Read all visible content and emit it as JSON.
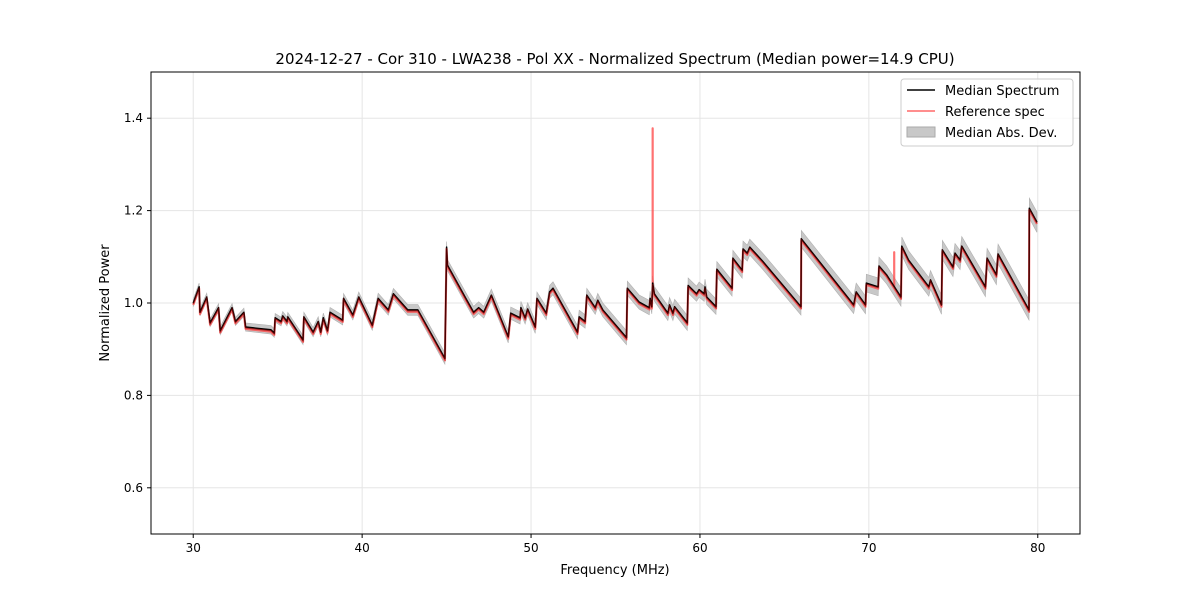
{
  "chart_data": {
    "type": "line",
    "title": "2024-12-27 - Cor 310 - LWA238 - Pol XX - Normalized Spectrum (Median power=14.9 CPU)",
    "xlabel": "Frequency (MHz)",
    "ylabel": "Normalized Power",
    "xlim": [
      27.5,
      82.5
    ],
    "ylim": [
      0.5,
      1.5
    ],
    "xticks": [
      30,
      40,
      50,
      60,
      70,
      80
    ],
    "xtick_labels": [
      "30",
      "40",
      "50",
      "60",
      "70",
      "80"
    ],
    "yticks": [
      0.6,
      0.8,
      1.0,
      1.2,
      1.4
    ],
    "ytick_labels": [
      "0.6",
      "0.8",
      "1.0",
      "1.2",
      "1.4"
    ],
    "grid": true,
    "legend_position": "top-right",
    "legend": [
      "Median Spectrum",
      "Reference spec",
      "Median Abs. Dev."
    ],
    "colors": {
      "median": "#000000",
      "reference": "#ff4d4d",
      "mad": "#c8c8c8"
    },
    "series": [
      {
        "name": "Median Spectrum",
        "points": [
          [
            30.0,
            1.0
          ],
          [
            30.35,
            1.035
          ],
          [
            30.4,
            0.98
          ],
          [
            30.8,
            1.013
          ],
          [
            31.0,
            0.957
          ],
          [
            31.5,
            0.99
          ],
          [
            31.6,
            0.94
          ],
          [
            32.3,
            0.99
          ],
          [
            32.5,
            0.96
          ],
          [
            33.0,
            0.98
          ],
          [
            33.1,
            0.948
          ],
          [
            34.6,
            0.942
          ],
          [
            34.8,
            0.935
          ],
          [
            34.85,
            0.968
          ],
          [
            35.2,
            0.96
          ],
          [
            35.3,
            0.972
          ],
          [
            35.55,
            0.96
          ],
          [
            35.6,
            0.97
          ],
          [
            36.5,
            0.92
          ],
          [
            36.55,
            0.97
          ],
          [
            37.1,
            0.937
          ],
          [
            37.4,
            0.96
          ],
          [
            37.55,
            0.937
          ],
          [
            37.7,
            0.968
          ],
          [
            37.95,
            0.94
          ],
          [
            38.1,
            0.98
          ],
          [
            38.85,
            0.963
          ],
          [
            38.9,
            1.01
          ],
          [
            39.45,
            0.974
          ],
          [
            39.8,
            1.013
          ],
          [
            40.6,
            0.952
          ],
          [
            40.95,
            1.01
          ],
          [
            41.55,
            0.985
          ],
          [
            41.85,
            1.02
          ],
          [
            42.7,
            0.985
          ],
          [
            43.3,
            0.985
          ],
          [
            44.9,
            0.88
          ],
          [
            45.0,
            1.121
          ],
          [
            45.05,
            1.082
          ],
          [
            46.2,
            1.006
          ],
          [
            46.6,
            0.98
          ],
          [
            46.9,
            0.99
          ],
          [
            47.2,
            0.98
          ],
          [
            47.65,
            1.017
          ],
          [
            48.65,
            0.927
          ],
          [
            48.8,
            0.978
          ],
          [
            49.35,
            0.968
          ],
          [
            49.4,
            0.99
          ],
          [
            49.65,
            0.968
          ],
          [
            49.8,
            0.987
          ],
          [
            50.25,
            0.948
          ],
          [
            50.35,
            1.01
          ],
          [
            50.9,
            0.978
          ],
          [
            51.1,
            1.024
          ],
          [
            51.3,
            1.032
          ],
          [
            52.75,
            0.937
          ],
          [
            52.85,
            0.97
          ],
          [
            53.2,
            0.96
          ],
          [
            53.3,
            1.017
          ],
          [
            53.8,
            0.99
          ],
          [
            53.95,
            1.006
          ],
          [
            54.25,
            0.985
          ],
          [
            55.65,
            0.925
          ],
          [
            55.7,
            1.032
          ],
          [
            56.4,
            1.002
          ],
          [
            57.0,
            0.99
          ],
          [
            57.05,
            1.01
          ],
          [
            57.15,
            0.992
          ],
          [
            57.2,
            1.043
          ],
          [
            57.3,
            1.02
          ],
          [
            58.1,
            0.978
          ],
          [
            58.2,
            0.996
          ],
          [
            58.4,
            0.978
          ],
          [
            58.5,
            0.992
          ],
          [
            59.25,
            0.957
          ],
          [
            59.3,
            1.038
          ],
          [
            59.8,
            1.02
          ],
          [
            59.95,
            1.029
          ],
          [
            60.25,
            1.02
          ],
          [
            60.3,
            1.035
          ],
          [
            60.4,
            1.013
          ],
          [
            60.95,
            0.992
          ],
          [
            61.0,
            1.073
          ],
          [
            61.9,
            1.032
          ],
          [
            61.95,
            1.097
          ],
          [
            62.5,
            1.071
          ],
          [
            62.55,
            1.117
          ],
          [
            62.8,
            1.108
          ],
          [
            62.95,
            1.121
          ],
          [
            63.7,
            1.091
          ],
          [
            65.98,
            0.992
          ],
          [
            66.0,
            1.139
          ],
          [
            69.1,
            0.996
          ],
          [
            69.25,
            1.024
          ],
          [
            69.8,
            0.996
          ],
          [
            69.85,
            1.043
          ],
          [
            70.55,
            1.035
          ],
          [
            70.6,
            1.08
          ],
          [
            71.05,
            1.061
          ],
          [
            71.9,
            1.013
          ],
          [
            71.95,
            1.123
          ],
          [
            72.35,
            1.093
          ],
          [
            73.55,
            1.035
          ],
          [
            73.65,
            1.05
          ],
          [
            74.3,
            0.996
          ],
          [
            74.35,
            1.115
          ],
          [
            74.98,
            1.078
          ],
          [
            75.1,
            1.108
          ],
          [
            75.4,
            1.093
          ],
          [
            75.5,
            1.123
          ],
          [
            76.9,
            1.035
          ],
          [
            77.0,
            1.097
          ],
          [
            77.55,
            1.061
          ],
          [
            77.65,
            1.106
          ],
          [
            79.48,
            0.985
          ],
          [
            79.5,
            1.205
          ],
          [
            79.95,
            1.175
          ]
        ]
      },
      {
        "name": "Reference spec",
        "follows": "Median Spectrum",
        "spikes": [
          [
            57.2,
            1.378
          ],
          [
            71.5,
            1.11
          ]
        ]
      },
      {
        "name": "Median Abs. Dev.",
        "half_width_at_30MHz": 0.008,
        "half_width_at_80MHz": 0.022
      }
    ]
  }
}
